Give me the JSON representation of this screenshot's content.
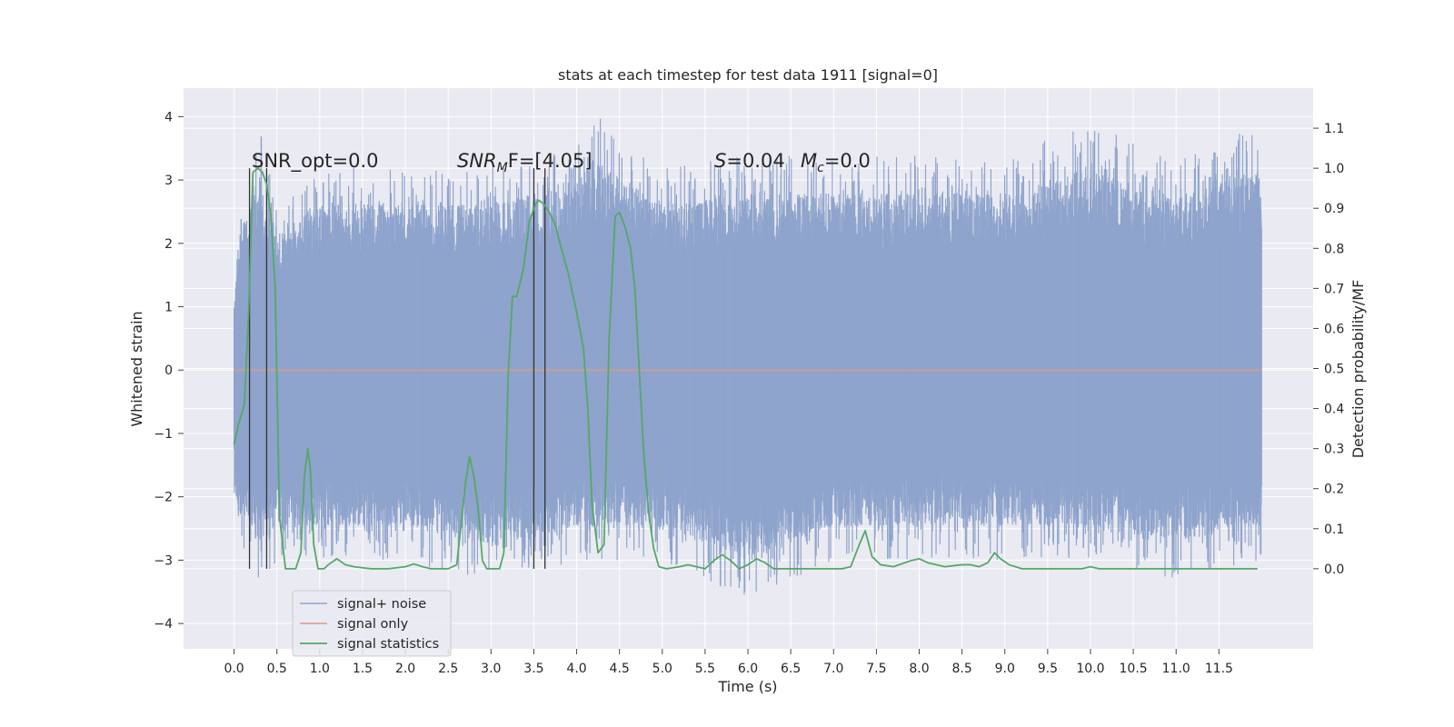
{
  "chart_data": {
    "type": "line",
    "title": "stats at each timestep for test data 1911 [signal=0]",
    "xlabel": "Time (s)",
    "ylabel": "Whitened strain",
    "ylabel_right": "Detection probability/MF",
    "xlim": [
      -0.59,
      12.6
    ],
    "ylim": [
      -4.4,
      4.45
    ],
    "ylim_right": [
      -0.2,
      1.2
    ],
    "x_ticks": [
      "0.0",
      "0.5",
      "1.0",
      "1.5",
      "2.0",
      "2.5",
      "3.0",
      "3.5",
      "4.0",
      "4.5",
      "5.0",
      "5.5",
      "6.0",
      "6.5",
      "7.0",
      "7.5",
      "8.0",
      "8.5",
      "9.0",
      "9.5",
      "10.0",
      "10.5",
      "11.0",
      "11.5"
    ],
    "y_ticks": [
      "4",
      "3",
      "2",
      "1",
      "0",
      "−1",
      "−2",
      "−3",
      "−4"
    ],
    "y_ticks_right": [
      "1.1",
      "1.0",
      "0.9",
      "0.8",
      "0.7",
      "0.6",
      "0.5",
      "0.4",
      "0.3",
      "0.2",
      "0.1",
      "0.0"
    ],
    "grid": true,
    "legend_position": "lower-left",
    "annotations": {
      "snr_opt": "SNR_opt=0.0",
      "snr_mf_main": "SNR",
      "snr_mf_sub": "M",
      "snr_mf_rest": "F=[4.05]",
      "stat_s": "S",
      "stat_s_val": "=0.04",
      "stat_mc": "M",
      "stat_mc_sub": "c",
      "stat_mc_val": "=0.0"
    },
    "vertical_markers_x": [
      0.18,
      0.38,
      3.5,
      3.63
    ],
    "series": [
      {
        "name": "signal+ noise",
        "color": "#8fa4cc",
        "axis": "left",
        "envelope": {
          "x": [
            0.0,
            0.05,
            0.3,
            0.5,
            1.0,
            2.0,
            3.0,
            4.0,
            4.2,
            5.0,
            6.0,
            7.0,
            8.0,
            9.0,
            10.0,
            11.0,
            12.0
          ],
          "min": [
            -2.2,
            -2.7,
            -3.4,
            -3.0,
            -3.0,
            -3.0,
            -3.4,
            -3.0,
            -3.0,
            -3.0,
            -3.7,
            -3.0,
            -3.0,
            -3.0,
            -3.0,
            -3.3,
            -3.0
          ],
          "max": [
            1.2,
            2.5,
            3.8,
            2.6,
            3.2,
            3.2,
            3.2,
            3.6,
            4.1,
            3.2,
            3.4,
            3.4,
            3.4,
            3.4,
            3.9,
            3.3,
            3.9
          ]
        }
      },
      {
        "name": "signal only",
        "color": "#dd9a86",
        "axis": "left",
        "x": [
          0.0,
          12.0
        ],
        "y": [
          0.0,
          0.0
        ]
      },
      {
        "name": "signal statistics",
        "color": "#55a868",
        "axis": "right",
        "x": [
          0.0,
          0.05,
          0.12,
          0.17,
          0.22,
          0.28,
          0.33,
          0.38,
          0.43,
          0.48,
          0.53,
          0.6,
          0.65,
          0.72,
          0.78,
          0.82,
          0.86,
          0.89,
          0.93,
          0.98,
          1.05,
          1.1,
          1.2,
          1.3,
          1.4,
          1.6,
          1.8,
          2.0,
          2.1,
          2.2,
          2.3,
          2.4,
          2.5,
          2.6,
          2.7,
          2.75,
          2.8,
          2.85,
          2.9,
          2.95,
          3.0,
          3.1,
          3.15,
          3.2,
          3.25,
          3.3,
          3.38,
          3.45,
          3.52,
          3.56,
          3.62,
          3.68,
          3.75,
          3.82,
          3.9,
          4.0,
          4.08,
          4.13,
          4.18,
          4.25,
          4.32,
          4.38,
          4.45,
          4.5,
          4.57,
          4.63,
          4.68,
          4.73,
          4.78,
          4.84,
          4.9,
          4.96,
          5.05,
          5.2,
          5.3,
          5.4,
          5.5,
          5.6,
          5.7,
          5.8,
          5.9,
          6.0,
          6.1,
          6.2,
          6.3,
          6.4,
          6.6,
          6.8,
          7.0,
          7.1,
          7.2,
          7.3,
          7.37,
          7.45,
          7.55,
          7.7,
          7.9,
          8.0,
          8.1,
          8.3,
          8.5,
          8.6,
          8.7,
          8.8,
          8.88,
          8.95,
          9.05,
          9.2,
          9.5,
          9.9,
          10.0,
          10.1,
          10.3,
          10.6,
          11.0,
          11.5,
          11.95
        ],
        "y": [
          0.31,
          0.36,
          0.41,
          0.64,
          0.99,
          1.0,
          0.99,
          0.96,
          0.88,
          0.7,
          0.13,
          0.0,
          0.0,
          0.0,
          0.04,
          0.23,
          0.3,
          0.25,
          0.06,
          0.0,
          0.0,
          0.01,
          0.025,
          0.01,
          0.005,
          0.0,
          0.0,
          0.005,
          0.012,
          0.005,
          0.0,
          0.0,
          0.0,
          0.01,
          0.21,
          0.28,
          0.23,
          0.15,
          0.02,
          0.0,
          0.0,
          0.0,
          0.04,
          0.48,
          0.68,
          0.68,
          0.75,
          0.87,
          0.91,
          0.92,
          0.91,
          0.89,
          0.86,
          0.8,
          0.74,
          0.64,
          0.55,
          0.4,
          0.16,
          0.04,
          0.06,
          0.58,
          0.88,
          0.89,
          0.85,
          0.8,
          0.7,
          0.5,
          0.3,
          0.14,
          0.05,
          0.005,
          0.0,
          0.005,
          0.01,
          0.005,
          0.0,
          0.02,
          0.035,
          0.02,
          0.0,
          0.01,
          0.025,
          0.015,
          0.0,
          0.0,
          0.0,
          0.0,
          0.0,
          0.0,
          0.005,
          0.06,
          0.095,
          0.03,
          0.01,
          0.005,
          0.02,
          0.025,
          0.015,
          0.005,
          0.01,
          0.01,
          0.005,
          0.015,
          0.04,
          0.025,
          0.01,
          0.0,
          0.0,
          0.0,
          0.005,
          0.0,
          0.0,
          0.0,
          0.0,
          0.0,
          0.0
        ]
      }
    ]
  }
}
